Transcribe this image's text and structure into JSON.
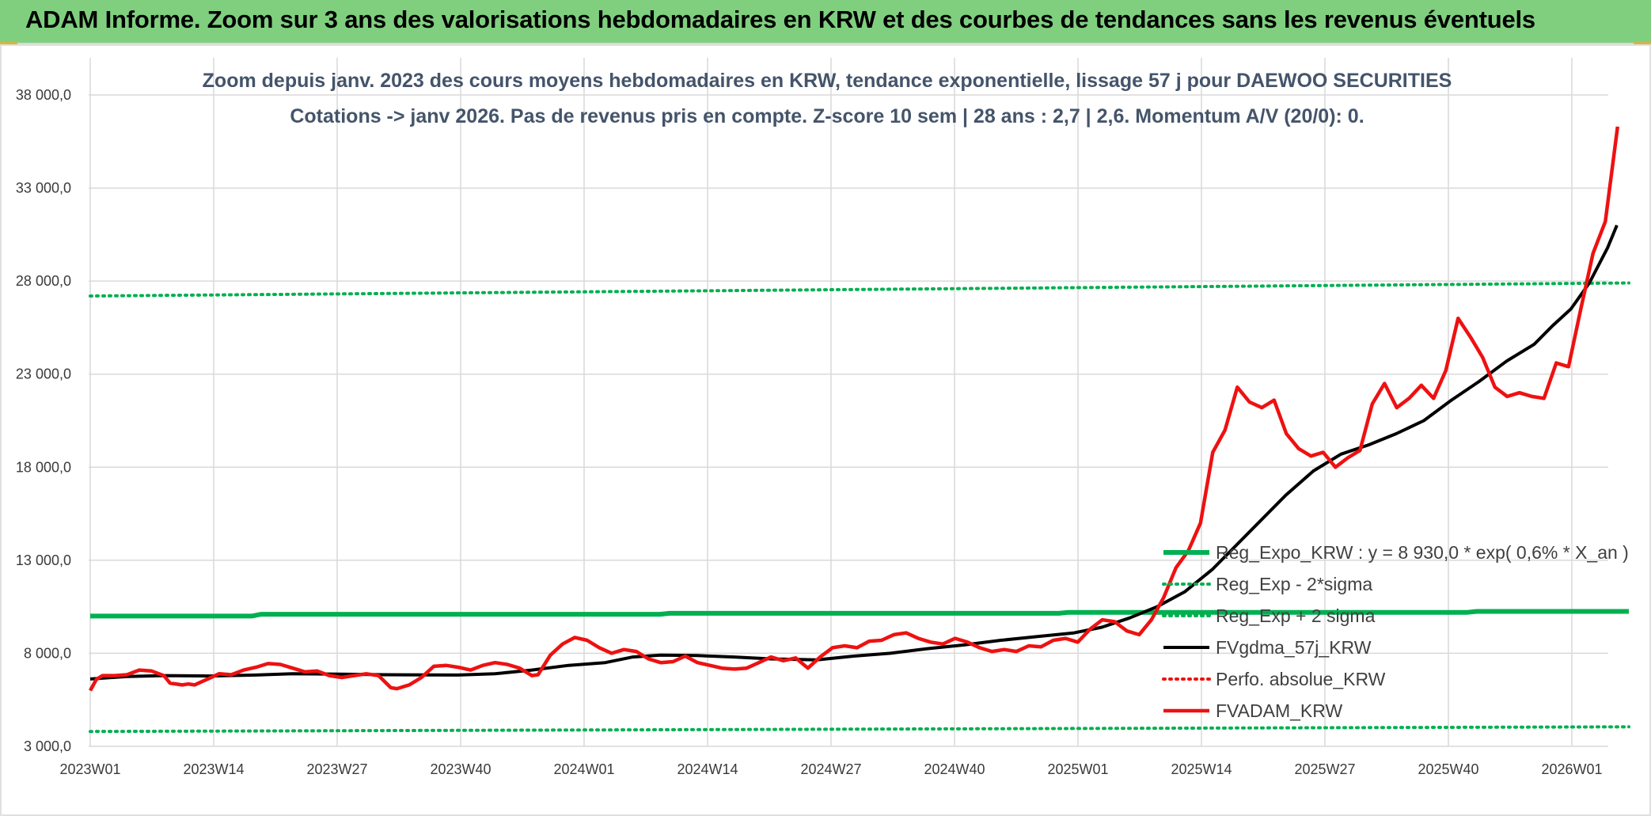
{
  "banner": {
    "title": "ADAM Informe. Zoom sur 3 ans des valorisations hebdomadaires en KRW et des courbes de tendances sans les revenus éventuels"
  },
  "colors": {
    "banner_bg": "#7fcf7f",
    "grid": "#d9d9d9",
    "reg_expo": "#00b050",
    "bands": "#00b050",
    "fvgdma": "#000000",
    "fvadam": "#ee1111",
    "perfo": "#ee1111"
  },
  "chart_data": {
    "type": "line",
    "title_lines": [
      "Zoom depuis janv. 2023 des cours moyens hebdomadaires en KRW, tendance exponentielle, lissage 57 j pour DAEWOO SECURITIES",
      "Cotations -> janv 2026. Pas de revenus pris en compte. Z-score 10 sem | 28 ans : 2,7 | 2,6. Momentum A/V (20/0): 0."
    ],
    "ylim": [
      3000,
      40000
    ],
    "y_ticks": [
      3000,
      8000,
      13000,
      18000,
      23000,
      28000,
      33000,
      38000
    ],
    "y_tick_labels": [
      "3 000,0",
      "8 000,0",
      "13 000,0",
      "18 000,0",
      "23 000,0",
      "28 000,0",
      "33 000,0",
      "38 000,0"
    ],
    "x_tick_labels": [
      "2023W01",
      "2023W14",
      "2023W27",
      "2023W40",
      "2024W01",
      "2024W14",
      "2024W27",
      "2024W40",
      "2025W01",
      "2025W14",
      "2025W27",
      "2025W40",
      "2026W01"
    ],
    "weeks_count": 163,
    "grid": true,
    "legend_position": "right",
    "series": [
      {
        "name": "Reg_Expo_KRW : y = 8 930,0 * exp( 0,6% *  X_an )",
        "style": "solid-thick",
        "color": "#00b050",
        "points": [
          [
            0,
            10000
          ],
          [
            17,
            10000
          ],
          [
            18,
            10100
          ],
          [
            60,
            10100
          ],
          [
            61,
            10150
          ],
          [
            102,
            10150
          ],
          [
            103,
            10200
          ],
          [
            145,
            10200
          ],
          [
            146,
            10250
          ],
          [
            162,
            10250
          ]
        ]
      },
      {
        "name": "Reg_Exp - 2*sigma",
        "style": "dotted",
        "color": "#00b050",
        "points": [
          [
            0,
            3800
          ],
          [
            162,
            4050
          ]
        ]
      },
      {
        "name": "Reg_Exp + 2 sigma",
        "style": "dotted",
        "color": "#00b050",
        "points": [
          [
            0,
            27200
          ],
          [
            162,
            27900
          ]
        ]
      },
      {
        "name": "FVgdma_57j_KRW",
        "style": "solid",
        "color": "#000000",
        "points": [
          [
            0,
            6620
          ],
          [
            4,
            6750
          ],
          [
            8,
            6800
          ],
          [
            13,
            6780
          ],
          [
            18,
            6830
          ],
          [
            22,
            6900
          ],
          [
            27,
            6880
          ],
          [
            32,
            6850
          ],
          [
            37,
            6840
          ],
          [
            40,
            6830
          ],
          [
            44,
            6900
          ],
          [
            48,
            7100
          ],
          [
            52,
            7350
          ],
          [
            56,
            7500
          ],
          [
            59,
            7800
          ],
          [
            62,
            7900
          ],
          [
            66,
            7880
          ],
          [
            70,
            7800
          ],
          [
            74,
            7700
          ],
          [
            79,
            7650
          ],
          [
            83,
            7850
          ],
          [
            87,
            8000
          ],
          [
            91,
            8250
          ],
          [
            95,
            8450
          ],
          [
            99,
            8700
          ],
          [
            103,
            8900
          ],
          [
            107,
            9100
          ],
          [
            110,
            9400
          ],
          [
            113,
            9900
          ],
          [
            116,
            10500
          ],
          [
            119,
            11300
          ],
          [
            122,
            12500
          ],
          [
            126,
            14500
          ],
          [
            130,
            16500
          ],
          [
            133,
            17800
          ],
          [
            136,
            18700
          ],
          [
            139,
            19200
          ],
          [
            142,
            19800
          ],
          [
            145,
            20500
          ],
          [
            148,
            21600
          ],
          [
            151,
            22600
          ],
          [
            154,
            23700
          ],
          [
            157,
            24600
          ],
          [
            159,
            25600
          ],
          [
            161,
            26500
          ],
          [
            163,
            27900
          ],
          [
            165,
            29800
          ],
          [
            166,
            31000
          ]
        ]
      },
      {
        "name": "Perfo. absolue_KRW",
        "style": "dotted",
        "color": "#ee1111",
        "points": []
      },
      {
        "name": "FVADAM_KRW",
        "style": "solid-thick",
        "color": "#ee1111",
        "points": [
          [
            0,
            6000
          ],
          [
            1,
            6600
          ],
          [
            2,
            6800
          ],
          [
            4,
            6800
          ],
          [
            6,
            6850
          ],
          [
            8,
            7100
          ],
          [
            10,
            7050
          ],
          [
            12,
            6800
          ],
          [
            13,
            6400
          ],
          [
            15,
            6300
          ],
          [
            16,
            6350
          ],
          [
            17,
            6300
          ],
          [
            19,
            6600
          ],
          [
            21,
            6900
          ],
          [
            23,
            6850
          ],
          [
            25,
            7100
          ],
          [
            27,
            7250
          ],
          [
            29,
            7450
          ],
          [
            31,
            7400
          ],
          [
            33,
            7200
          ],
          [
            35,
            7000
          ],
          [
            37,
            7050
          ],
          [
            39,
            6800
          ],
          [
            41,
            6700
          ],
          [
            43,
            6800
          ],
          [
            45,
            6900
          ],
          [
            47,
            6800
          ],
          [
            49,
            6150
          ],
          [
            50,
            6100
          ],
          [
            52,
            6300
          ],
          [
            54,
            6700
          ],
          [
            56,
            7300
          ],
          [
            58,
            7350
          ],
          [
            60,
            7250
          ],
          [
            62,
            7100
          ],
          [
            64,
            7350
          ],
          [
            66,
            7500
          ],
          [
            68,
            7400
          ],
          [
            70,
            7200
          ],
          [
            72,
            6800
          ],
          [
            73,
            6850
          ],
          [
            75,
            7900
          ],
          [
            77,
            8500
          ],
          [
            79,
            8850
          ],
          [
            81,
            8700
          ],
          [
            83,
            8300
          ],
          [
            85,
            8000
          ],
          [
            87,
            8200
          ],
          [
            89,
            8100
          ],
          [
            91,
            7700
          ],
          [
            93,
            7500
          ],
          [
            95,
            7550
          ],
          [
            97,
            7850
          ],
          [
            99,
            7500
          ],
          [
            101,
            7350
          ],
          [
            103,
            7200
          ],
          [
            105,
            7150
          ],
          [
            107,
            7200
          ],
          [
            109,
            7500
          ],
          [
            111,
            7800
          ],
          [
            113,
            7600
          ],
          [
            115,
            7750
          ],
          [
            117,
            7200
          ],
          [
            119,
            7800
          ],
          [
            121,
            8300
          ],
          [
            123,
            8400
          ],
          [
            125,
            8300
          ],
          [
            127,
            8650
          ],
          [
            129,
            8700
          ],
          [
            131,
            9000
          ],
          [
            133,
            9100
          ],
          [
            135,
            8800
          ],
          [
            137,
            8600
          ],
          [
            139,
            8500
          ],
          [
            141,
            8800
          ],
          [
            143,
            8600
          ],
          [
            145,
            8300
          ],
          [
            147,
            8100
          ],
          [
            149,
            8200
          ],
          [
            151,
            8100
          ],
          [
            153,
            8400
          ],
          [
            155,
            8350
          ],
          [
            157,
            8700
          ],
          [
            159,
            8800
          ],
          [
            161,
            8600
          ],
          [
            163,
            9300
          ],
          [
            165,
            9800
          ],
          [
            167,
            9700
          ],
          [
            169,
            9200
          ],
          [
            171,
            9000
          ],
          [
            173,
            9800
          ],
          [
            175,
            11000
          ],
          [
            177,
            12600
          ],
          [
            179,
            13500
          ],
          [
            181,
            15000
          ],
          [
            183,
            18800
          ],
          [
            185,
            20000
          ],
          [
            187,
            22300
          ],
          [
            189,
            21500
          ],
          [
            191,
            21200
          ],
          [
            193,
            21600
          ],
          [
            195,
            19800
          ],
          [
            197,
            19000
          ],
          [
            199,
            18600
          ],
          [
            201,
            18800
          ],
          [
            203,
            18000
          ],
          [
            205,
            18500
          ],
          [
            207,
            18900
          ],
          [
            209,
            21400
          ],
          [
            211,
            22500
          ],
          [
            213,
            21200
          ],
          [
            215,
            21700
          ],
          [
            217,
            22400
          ],
          [
            219,
            21700
          ],
          [
            221,
            23200
          ],
          [
            223,
            26000
          ],
          [
            225,
            25000
          ],
          [
            227,
            23900
          ],
          [
            229,
            22300
          ],
          [
            231,
            21800
          ],
          [
            233,
            22000
          ],
          [
            235,
            21800
          ],
          [
            237,
            21700
          ],
          [
            239,
            23600
          ],
          [
            241,
            23400
          ],
          [
            243,
            26500
          ],
          [
            245,
            29500
          ],
          [
            247,
            31200
          ],
          [
            249,
            36300
          ]
        ]
      }
    ]
  }
}
